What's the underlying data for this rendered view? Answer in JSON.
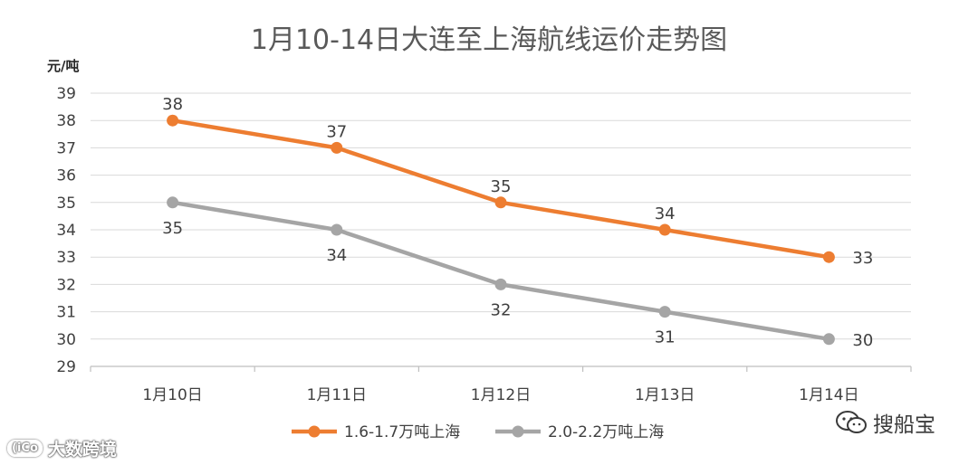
{
  "chart_data": {
    "type": "line",
    "title": "1月10-14日大连至上海航线运价走势图",
    "ylabel": "元/吨",
    "xlabel": "",
    "categories": [
      "1月10日",
      "1月11日",
      "1月12日",
      "1月13日",
      "1月14日"
    ],
    "ylim": [
      29,
      39
    ],
    "yticks": [
      29,
      30,
      31,
      32,
      33,
      34,
      35,
      36,
      37,
      38,
      39
    ],
    "grid": true,
    "legend_position": "bottom",
    "series": [
      {
        "name": "1.6-1.7万吨上海",
        "values": [
          38,
          37,
          35,
          34,
          33
        ],
        "color": "#ED7D31",
        "label_position": "above"
      },
      {
        "name": "2.0-2.2万吨上海",
        "values": [
          35,
          34,
          32,
          31,
          30
        ],
        "color": "#A5A5A5",
        "label_position": "below"
      }
    ]
  },
  "watermarks": {
    "left_badge": "(iCo",
    "left_text": "大数跨境",
    "right_icon": "wechat-icon",
    "right_text": "搜船宝"
  }
}
